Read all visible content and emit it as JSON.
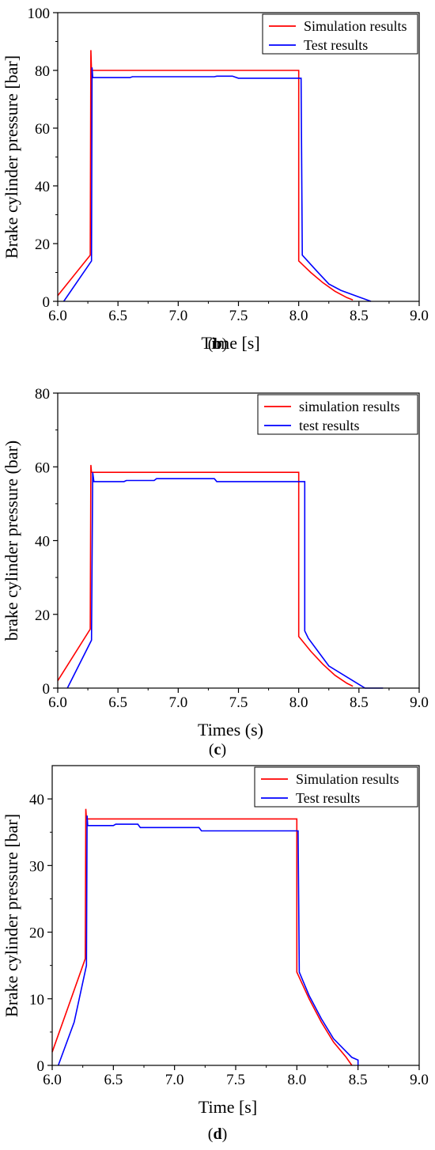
{
  "chart_data": [
    {
      "panel_label": "b",
      "type": "line",
      "xlabel": "Time [s]",
      "ylabel": "Brake cylinder pressure [bar]",
      "xlim": [
        6.0,
        9.0
      ],
      "ylim": [
        0,
        100
      ],
      "xticks": [
        "6.0",
        "6.5",
        "7.0",
        "7.5",
        "8.0",
        "8.5",
        "9.0"
      ],
      "yticks": [
        "0",
        "20",
        "40",
        "60",
        "80",
        "100"
      ],
      "legend_position": "top-right",
      "series": [
        {
          "name": "Simulation results",
          "color": "#ff0000",
          "x": [
            6.0,
            6.27,
            6.275,
            6.28,
            7.0,
            8.0,
            8.0,
            8.1,
            8.2,
            8.3,
            8.4,
            8.45
          ],
          "y": [
            2.0,
            16.0,
            87.0,
            80.0,
            80.0,
            80.0,
            14.0,
            10.0,
            6.5,
            3.5,
            1.3,
            0.5
          ]
        },
        {
          "name": "Test results",
          "color": "#0000ff",
          "x": [
            6.05,
            6.28,
            6.285,
            6.29,
            6.6,
            6.62,
            7.3,
            7.32,
            7.45,
            7.5,
            8.0,
            8.02,
            8.03,
            8.15,
            8.25,
            8.35,
            8.5,
            8.6
          ],
          "y": [
            0.0,
            14.0,
            81.0,
            77.5,
            77.5,
            77.8,
            77.8,
            78.0,
            78.0,
            77.3,
            77.3,
            77.3,
            16.0,
            10.5,
            6.0,
            3.8,
            1.5,
            0.0
          ]
        }
      ]
    },
    {
      "panel_label": "c",
      "type": "line",
      "xlabel": "Times (s)",
      "ylabel": "brake cylinder pressure (bar)",
      "xlim": [
        6.0,
        9.0
      ],
      "ylim": [
        0,
        80
      ],
      "xticks": [
        "6.0",
        "6.5",
        "7.0",
        "7.5",
        "8.0",
        "8.5",
        "9.0"
      ],
      "yticks": [
        "0",
        "20",
        "40",
        "60",
        "80"
      ],
      "legend_position": "top-right",
      "series": [
        {
          "name": "simulation results",
          "color": "#ff0000",
          "x": [
            6.0,
            6.27,
            6.275,
            6.28,
            7.0,
            8.0,
            8.0,
            8.1,
            8.2,
            8.3,
            8.4,
            8.45
          ],
          "y": [
            2.0,
            16.0,
            60.5,
            58.5,
            58.5,
            58.5,
            14.0,
            10.0,
            6.5,
            3.5,
            1.3,
            0.5
          ]
        },
        {
          "name": "test results",
          "color": "#0000ff",
          "x": [
            6.08,
            6.28,
            6.29,
            6.3,
            6.55,
            6.57,
            6.8,
            6.82,
            7.3,
            7.32,
            8.05,
            8.05,
            8.08,
            8.25,
            8.5,
            8.55,
            8.7
          ],
          "y": [
            0.0,
            13.0,
            58.5,
            56.0,
            56.0,
            56.3,
            56.3,
            56.8,
            56.8,
            56.0,
            56.0,
            15.5,
            13.5,
            6.0,
            1.0,
            0.0,
            0.0
          ]
        }
      ]
    },
    {
      "panel_label": "d",
      "type": "line",
      "xlabel": "Time [s]",
      "ylabel": "Brake cylinder pressure [bar]",
      "xlim": [
        6.0,
        9.0
      ],
      "ylim": [
        0,
        45
      ],
      "xticks": [
        "6.0",
        "6.5",
        "7.0",
        "7.5",
        "8.0",
        "8.5",
        "9.0"
      ],
      "yticks": [
        "0",
        "10",
        "20",
        "30",
        "40"
      ],
      "legend_position": "top-right",
      "series": [
        {
          "name": "Simulation results",
          "color": "#ff0000",
          "x": [
            6.0,
            6.27,
            6.275,
            6.28,
            7.0,
            8.0,
            8.0,
            8.1,
            8.2,
            8.3,
            8.4,
            8.45
          ],
          "y": [
            2.0,
            16.0,
            38.5,
            37.0,
            37.0,
            37.0,
            14.0,
            10.0,
            6.5,
            3.5,
            1.3,
            0.0
          ]
        },
        {
          "name": "Test results",
          "color": "#0000ff",
          "x": [
            6.05,
            6.18,
            6.28,
            6.285,
            6.29,
            6.5,
            6.52,
            6.7,
            6.72,
            7.2,
            7.22,
            8.0,
            8.01,
            8.02,
            8.1,
            8.2,
            8.3,
            8.45,
            8.5,
            8.5
          ],
          "y": [
            0.0,
            6.5,
            15.0,
            37.5,
            36.0,
            36.0,
            36.2,
            36.2,
            35.7,
            35.7,
            35.2,
            35.2,
            35.2,
            14.0,
            10.5,
            7.0,
            4.0,
            1.2,
            0.8,
            0.0
          ]
        }
      ]
    }
  ]
}
